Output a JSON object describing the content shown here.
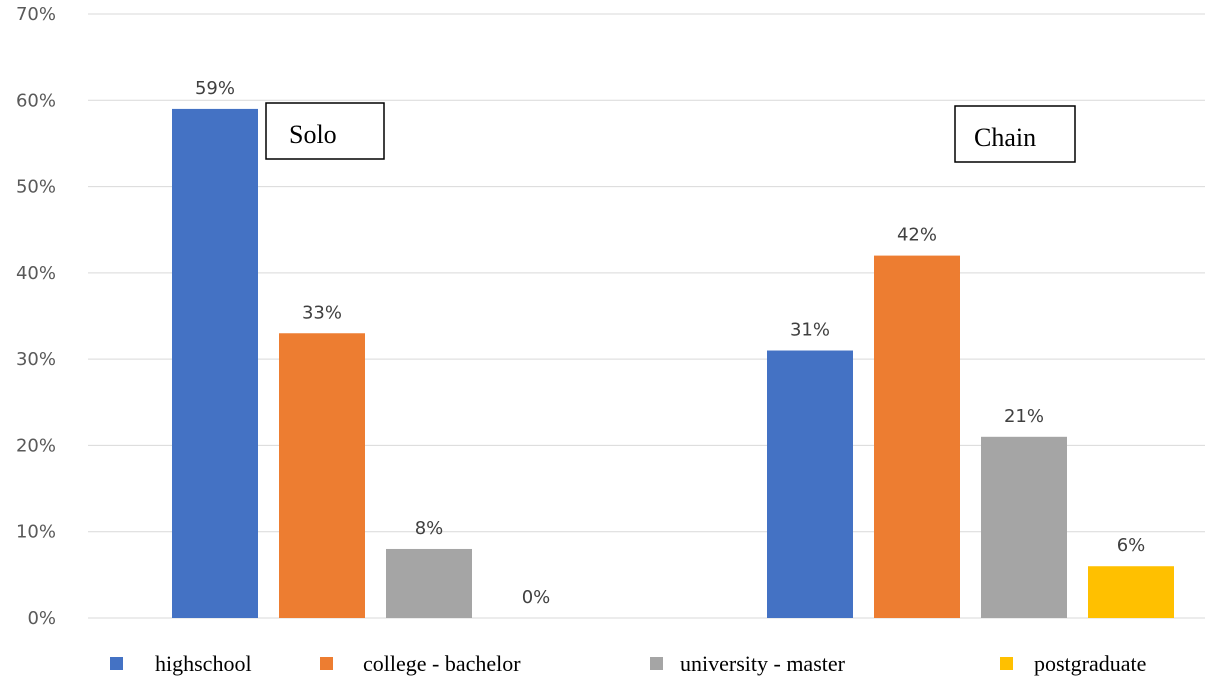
{
  "chart_data": {
    "type": "bar",
    "categories": [
      "Solo",
      "Chain"
    ],
    "series": [
      {
        "name": "highschool",
        "values": [
          59,
          31
        ],
        "color": "#4472C4"
      },
      {
        "name": "college - bachelor",
        "values": [
          33,
          42
        ],
        "color": "#ED7D31"
      },
      {
        "name": "university - master",
        "values": [
          8,
          21
        ],
        "color": "#A5A5A5"
      },
      {
        "name": "postgraduate",
        "values": [
          0,
          6
        ],
        "color": "#FFC000"
      }
    ],
    "data_labels": [
      [
        "59%",
        "31%"
      ],
      [
        "33%",
        "42%"
      ],
      [
        "8%",
        "21%"
      ],
      [
        "0%",
        "6%"
      ]
    ],
    "ylim": [
      0,
      70
    ],
    "yticks": [
      "0%",
      "10%",
      "20%",
      "30%",
      "40%",
      "50%",
      "60%",
      "70%"
    ],
    "ytick_values": [
      0,
      10,
      20,
      30,
      40,
      50,
      60,
      70
    ],
    "grid": true,
    "gridline_color": "#D9D9D9",
    "legend_position": "bottom",
    "title": "",
    "xlabel": "",
    "ylabel": ""
  }
}
